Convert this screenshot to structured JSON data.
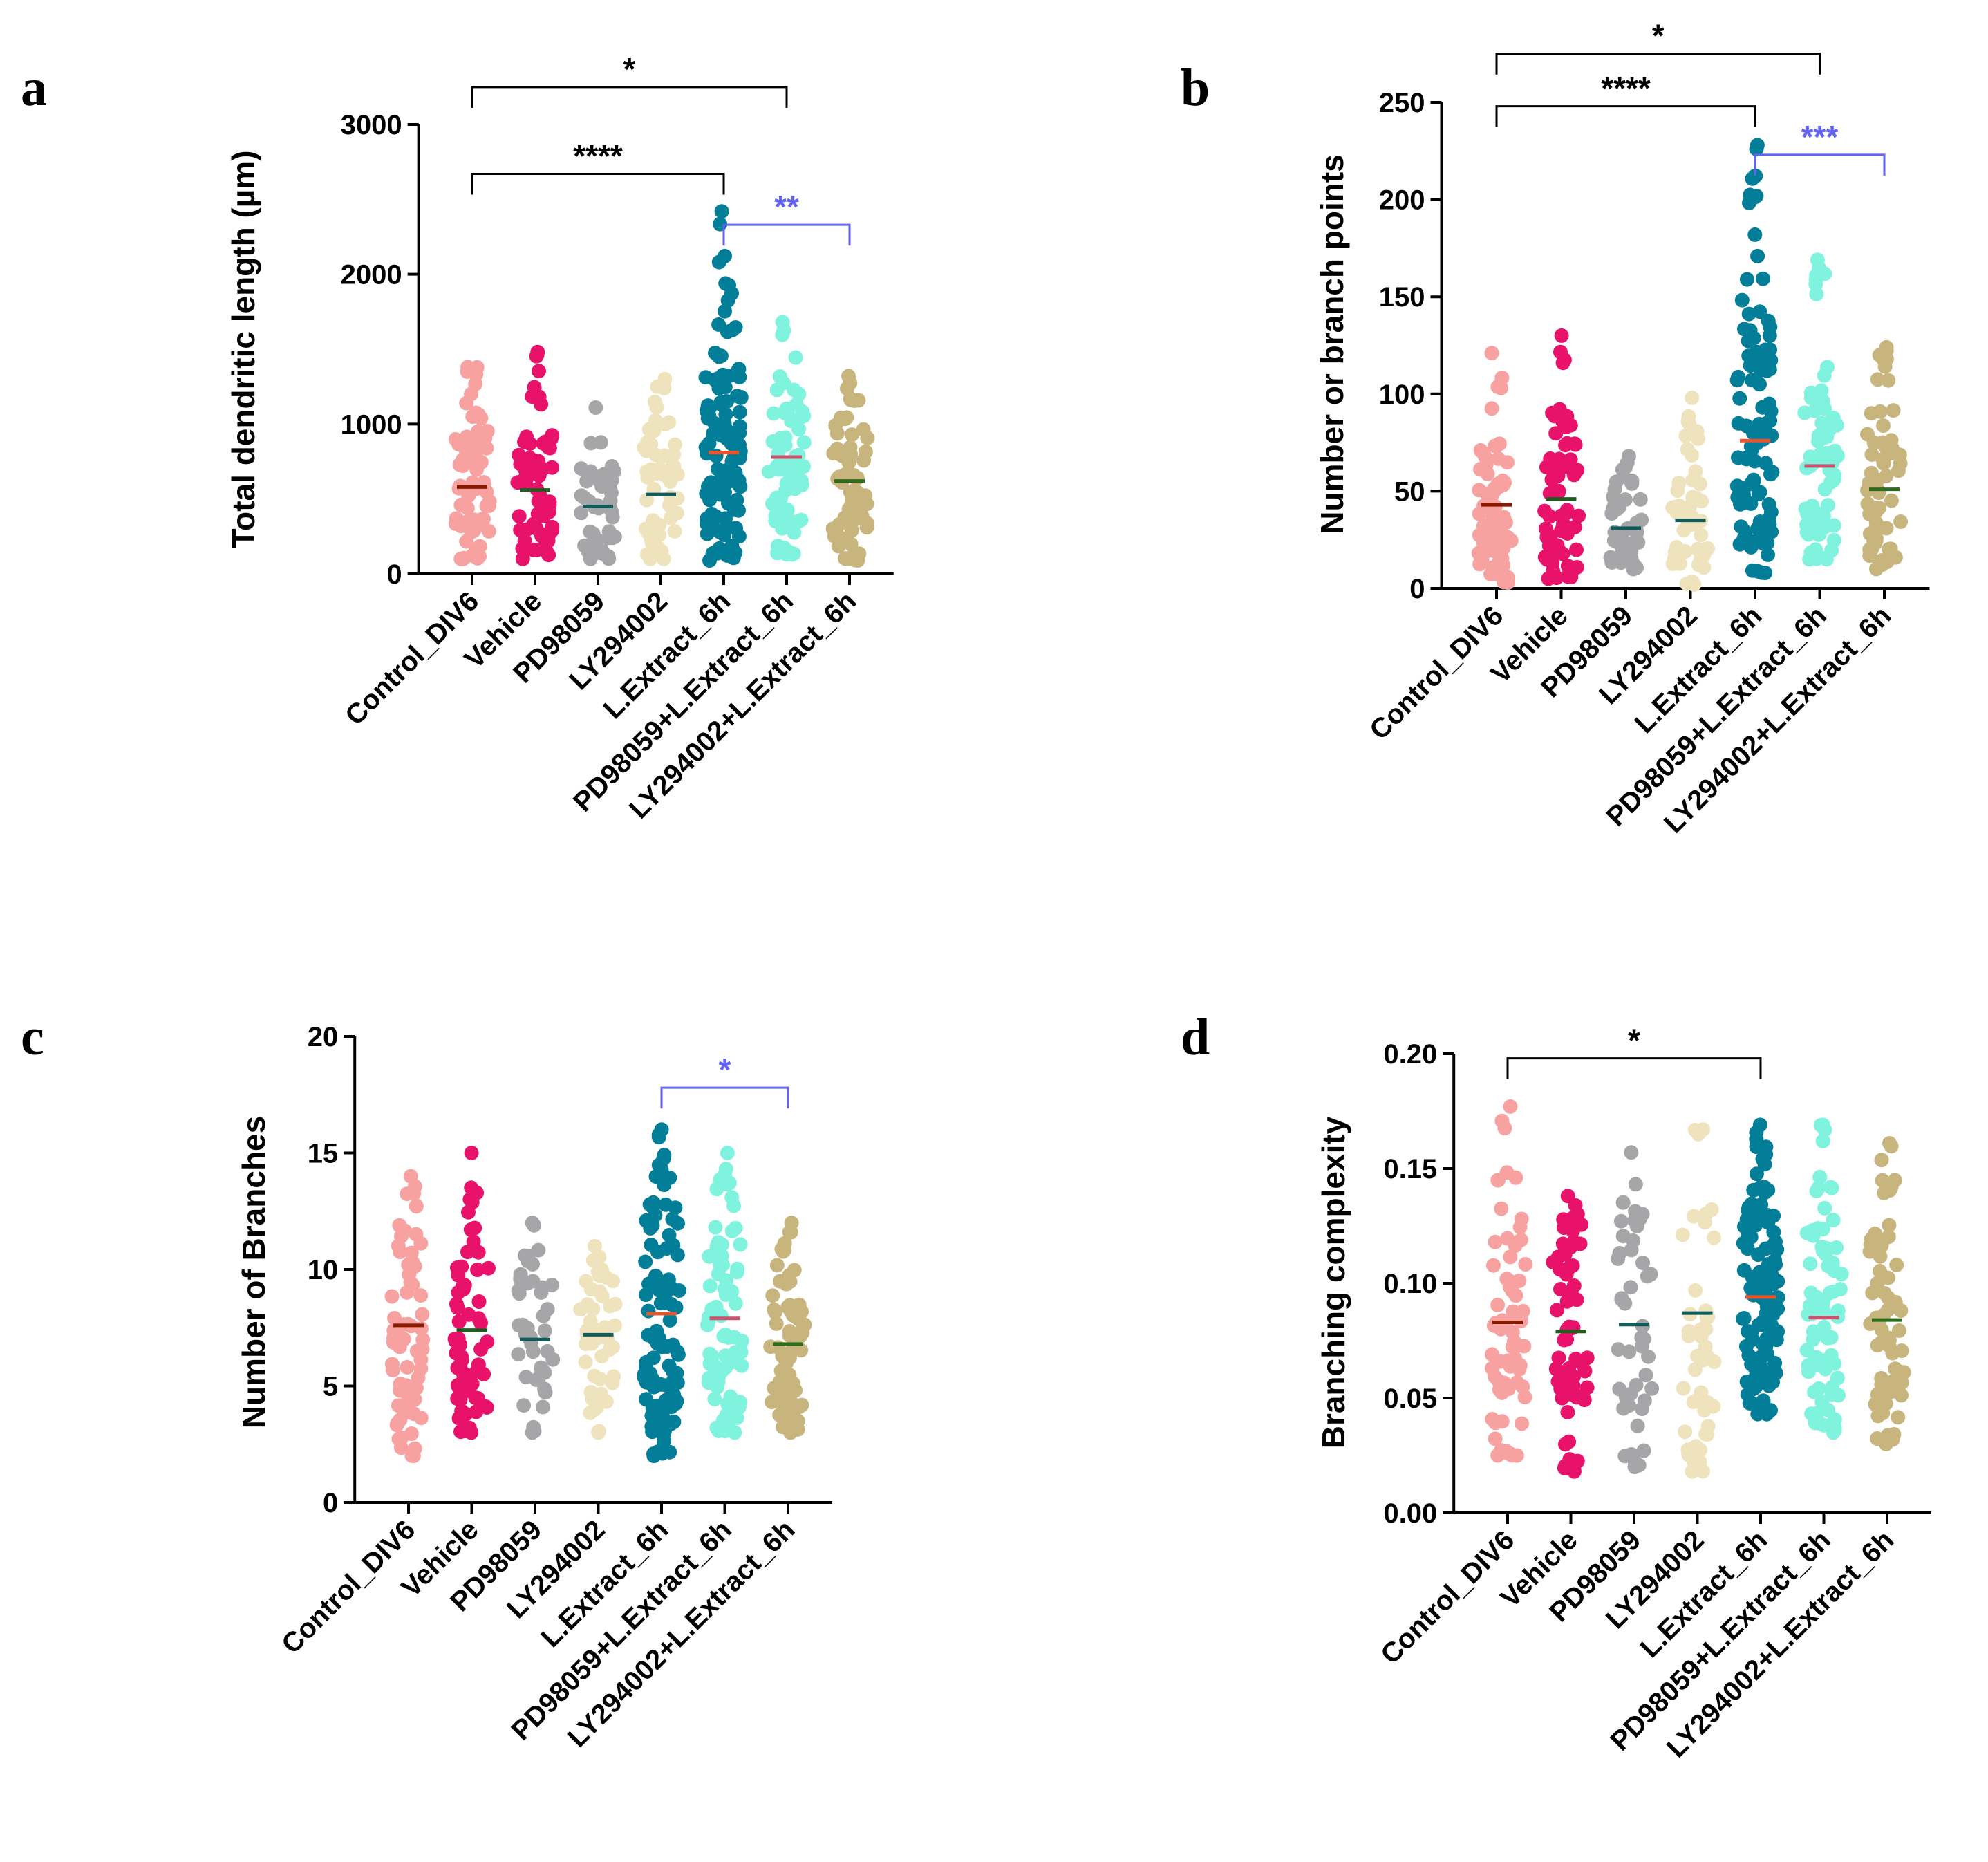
{
  "chart_data": [
    {
      "panel": "a",
      "type": "scatter",
      "title": "",
      "xlabel": "",
      "ylabel": "Total dendritic length (µm)",
      "ylim": [
        0,
        3000
      ],
      "yticks": [
        0,
        1000,
        2000,
        3000
      ],
      "categories": [
        "Control_DIV6",
        "Vehicle",
        "PD98059",
        "LY294002",
        "L.Extract_6h",
        "PD98059+L.Extract_6h",
        "LY294002+L.Extract_6h"
      ],
      "colors": [
        "#F7A2A0",
        "#E8126A",
        "#A6A6A8",
        "#EFE3BE",
        "#037E99",
        "#7FF3DE",
        "#C8B57D"
      ],
      "mean_colors": [
        "#8B1A00",
        "#1E5E1E",
        "#125C5C",
        "#125C5C",
        "#E8552D",
        "#C8556E",
        "#2F6D1E"
      ],
      "means": [
        580,
        560,
        450,
        530,
        810,
        780,
        620
      ],
      "ranges": [
        [
          100,
          1380
        ],
        [
          100,
          1480
        ],
        [
          100,
          1110
        ],
        [
          100,
          1300
        ],
        [
          90,
          2420
        ],
        [
          130,
          1680
        ],
        [
          90,
          1320
        ]
      ],
      "n_points": [
        70,
        65,
        45,
        50,
        110,
        75,
        70
      ],
      "significance": [
        {
          "from": 0,
          "to": 4,
          "label": "****",
          "color": "#000000",
          "y": 2670
        },
        {
          "from": 0,
          "to": 5,
          "label": "*",
          "color": "#000000",
          "y": 3250
        },
        {
          "from": 4,
          "to": 6,
          "label": "**",
          "color": "#6262F3",
          "y": 2330
        }
      ]
    },
    {
      "panel": "b",
      "type": "scatter",
      "title": "",
      "xlabel": "",
      "ylabel": "Number or branch points",
      "ylim": [
        0,
        250
      ],
      "yticks": [
        0,
        50,
        100,
        150,
        200,
        250
      ],
      "categories": [
        "Control_DIV6",
        "Vehicle",
        "PD98059",
        "LY294002",
        "L.Extract_6h",
        "PD98059+L.Extract_6h",
        "LY294002+L.Extract_6h"
      ],
      "colors": [
        "#F7A2A0",
        "#E8126A",
        "#A6A6A8",
        "#EFE3BE",
        "#037E99",
        "#7FF3DE",
        "#C8B57D"
      ],
      "mean_colors": [
        "#8B1A00",
        "#1E5E1E",
        "#125C5C",
        "#125C5C",
        "#E8552D",
        "#C8556E",
        "#2F6D1E"
      ],
      "means": [
        43,
        46,
        31,
        35,
        76,
        63,
        51
      ],
      "ranges": [
        [
          3,
          121
        ],
        [
          5,
          130
        ],
        [
          10,
          68
        ],
        [
          2,
          98
        ],
        [
          8,
          228
        ],
        [
          15,
          169
        ],
        [
          10,
          124
        ]
      ],
      "n_points": [
        70,
        65,
        45,
        50,
        110,
        75,
        70
      ],
      "significance": [
        {
          "from": 0,
          "to": 4,
          "label": "****",
          "color": "#000000",
          "y": 248
        },
        {
          "from": 0,
          "to": 5,
          "label": "*",
          "color": "#000000",
          "y": 275
        },
        {
          "from": 4,
          "to": 6,
          "label": "***",
          "color": "#6262F3",
          "y": 223
        }
      ]
    },
    {
      "panel": "c",
      "type": "scatter",
      "title": "",
      "xlabel": "",
      "ylabel": "Number of Branches",
      "ylim": [
        0,
        20
      ],
      "yticks": [
        0,
        5,
        10,
        15,
        20
      ],
      "categories": [
        "Control_DIV6",
        "Vehicle",
        "PD98059",
        "LY294002",
        "L.Extract_6h",
        "PD98059+L.Extract_6h",
        "LY294002+L.Extract_6h"
      ],
      "colors": [
        "#F7A2A0",
        "#E8126A",
        "#A6A6A8",
        "#EFE3BE",
        "#037E99",
        "#7FF3DE",
        "#C8B57D"
      ],
      "mean_colors": [
        "#8B1A00",
        "#1E5E1E",
        "#125C5C",
        "#125C5C",
        "#E8552D",
        "#C8556E",
        "#2F6D1E"
      ],
      "means": [
        7.6,
        7.4,
        7.0,
        7.2,
        8.1,
        7.9,
        6.8
      ],
      "ranges": [
        [
          2,
          14
        ],
        [
          3,
          15
        ],
        [
          3,
          12
        ],
        [
          3,
          11
        ],
        [
          2,
          16
        ],
        [
          3,
          15
        ],
        [
          3,
          12
        ]
      ],
      "n_points": [
        70,
        65,
        45,
        50,
        110,
        75,
        70
      ],
      "significance": [
        {
          "from": 4,
          "to": 6,
          "label": "*",
          "color": "#6262F3",
          "y": 17.8
        }
      ]
    },
    {
      "panel": "d",
      "type": "scatter",
      "title": "",
      "xlabel": "",
      "ylabel": "Branching complexity",
      "ylim": [
        0,
        0.2
      ],
      "yticks": [
        0.0,
        0.05,
        0.1,
        0.15,
        0.2
      ],
      "categories": [
        "Control_DIV6",
        "Vehicle",
        "PD98059",
        "LY294002",
        "L.Extract_6h",
        "PD98059+L.Extract_6h",
        "LY294002+L.Extract_6h"
      ],
      "colors": [
        "#F7A2A0",
        "#E8126A",
        "#A6A6A8",
        "#EFE3BE",
        "#037E99",
        "#7FF3DE",
        "#C8B57D"
      ],
      "mean_colors": [
        "#8B1A00",
        "#1E5E1E",
        "#125C5C",
        "#125C5C",
        "#E8552D",
        "#C8556E",
        "#2F6D1E"
      ],
      "means": [
        0.083,
        0.079,
        0.082,
        0.087,
        0.094,
        0.085,
        0.084
      ],
      "ranges": [
        [
          0.025,
          0.177
        ],
        [
          0.018,
          0.138
        ],
        [
          0.02,
          0.157
        ],
        [
          0.018,
          0.167
        ],
        [
          0.043,
          0.169
        ],
        [
          0.035,
          0.169
        ],
        [
          0.03,
          0.161
        ]
      ],
      "n_points": [
        70,
        65,
        45,
        50,
        110,
        75,
        70
      ],
      "significance": [
        {
          "from": 0,
          "to": 4,
          "label": "*",
          "color": "#000000",
          "y": 0.198
        }
      ]
    }
  ]
}
